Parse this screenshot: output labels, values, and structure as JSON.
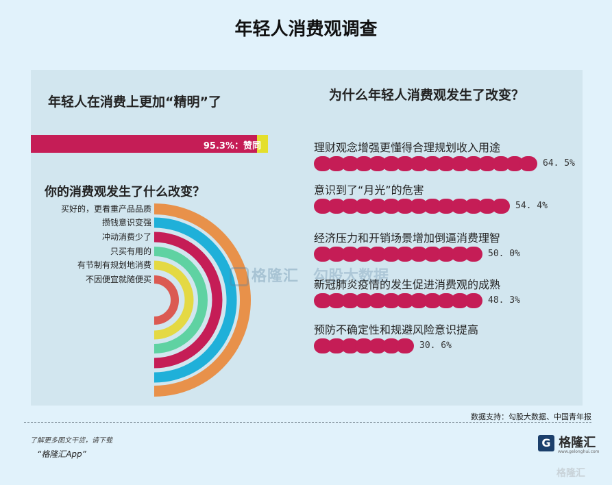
{
  "title": "年轻人消费观调查",
  "left": {
    "heading": "年轻人在消费上更加“精明”了",
    "approve_label": "95.3%：赞同",
    "approve_value": 95.3,
    "subheading": "你的消费观发生了什么改变？"
  },
  "chart_data": [
    {
      "type": "bar",
      "categories": [
        "赞同"
      ],
      "values": [
        95.3
      ],
      "title": "年轻人在消费上更加“精明”了"
    },
    {
      "type": "arc",
      "title": "你的消费观发生了什么改变？",
      "categories": [
        "买好的，更看重产品品质",
        "攒钱意识变强",
        "冲动消费少了",
        "只买有用的",
        "有节制有规划地消费",
        "不因便宜就随便买"
      ],
      "colors": [
        "#e8914a",
        "#1fb0d9",
        "#c51d56",
        "#5fd2a2",
        "#e4d943",
        "#db5a52"
      ]
    },
    {
      "type": "bar",
      "title": "为什么年轻人消费观发生了改变？",
      "categories": [
        "理财观念增强更懂得合理规划收入用途",
        "意识到了“月光”的危害",
        "经济压力和开销场景增加倒逼消费理智",
        "新冠肺炎疫情的发生促进消费观的成熟",
        "预防不确定性和规避风险意识提高"
      ],
      "values": [
        64.5,
        54.4,
        50.0,
        48.3,
        30.6
      ],
      "value_labels": [
        "64. 5%",
        "54. 4%",
        "50. 0%",
        "48. 3%",
        "30. 6%"
      ]
    }
  ],
  "right": {
    "heading": "为什么年轻人消费观发生了改变？"
  },
  "watermark": {
    "brand": "格隆汇",
    "sub": "勾股大数据"
  },
  "source": "数据支持：勾股大数据、中国青年报",
  "footer": {
    "note": "了解更多图文干货，请下载",
    "app": "“格隆汇App”"
  },
  "logo": {
    "text": "格隆汇",
    "sub": "www.gelonghui.com"
  },
  "colors": {
    "accent": "#c51d56",
    "background": "#e1f2fb",
    "panel": "#d2e6ef"
  }
}
